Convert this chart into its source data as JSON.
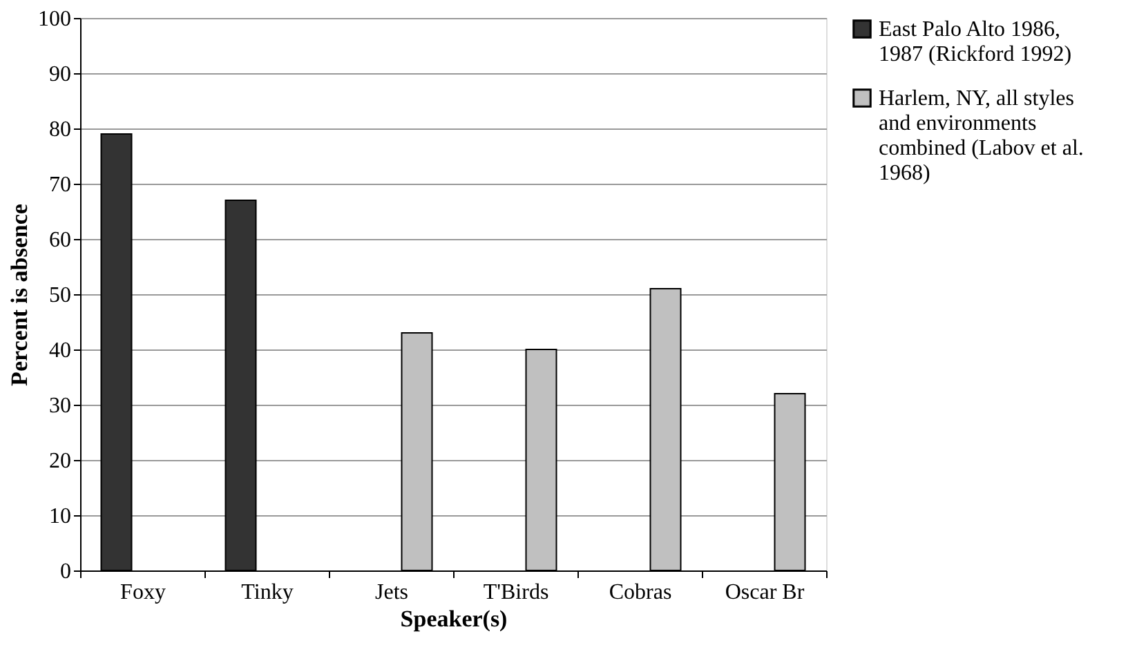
{
  "chart_data": {
    "type": "bar",
    "xlabel": "Speaker(s)",
    "ylabel": "Percent is absence",
    "categories": [
      "Foxy",
      "Tinky",
      "Jets",
      "T'Birds",
      "Cobras",
      "Oscar Br"
    ],
    "series": [
      {
        "name": "East Palo Alto 1986, 1987 (Rickford 1992)",
        "color": "#333333",
        "values": [
          79,
          67,
          null,
          null,
          null,
          null
        ]
      },
      {
        "name": "Harlem, NY, all styles and environments combined (Labov et al. 1968)",
        "color": "#c0c0c0",
        "values": [
          null,
          null,
          43,
          40,
          51,
          32
        ]
      }
    ],
    "ylim": [
      0,
      100
    ],
    "yticks": [
      0,
      10,
      20,
      30,
      40,
      50,
      60,
      70,
      80,
      90,
      100
    ],
    "grid": "y",
    "legend": "right"
  }
}
